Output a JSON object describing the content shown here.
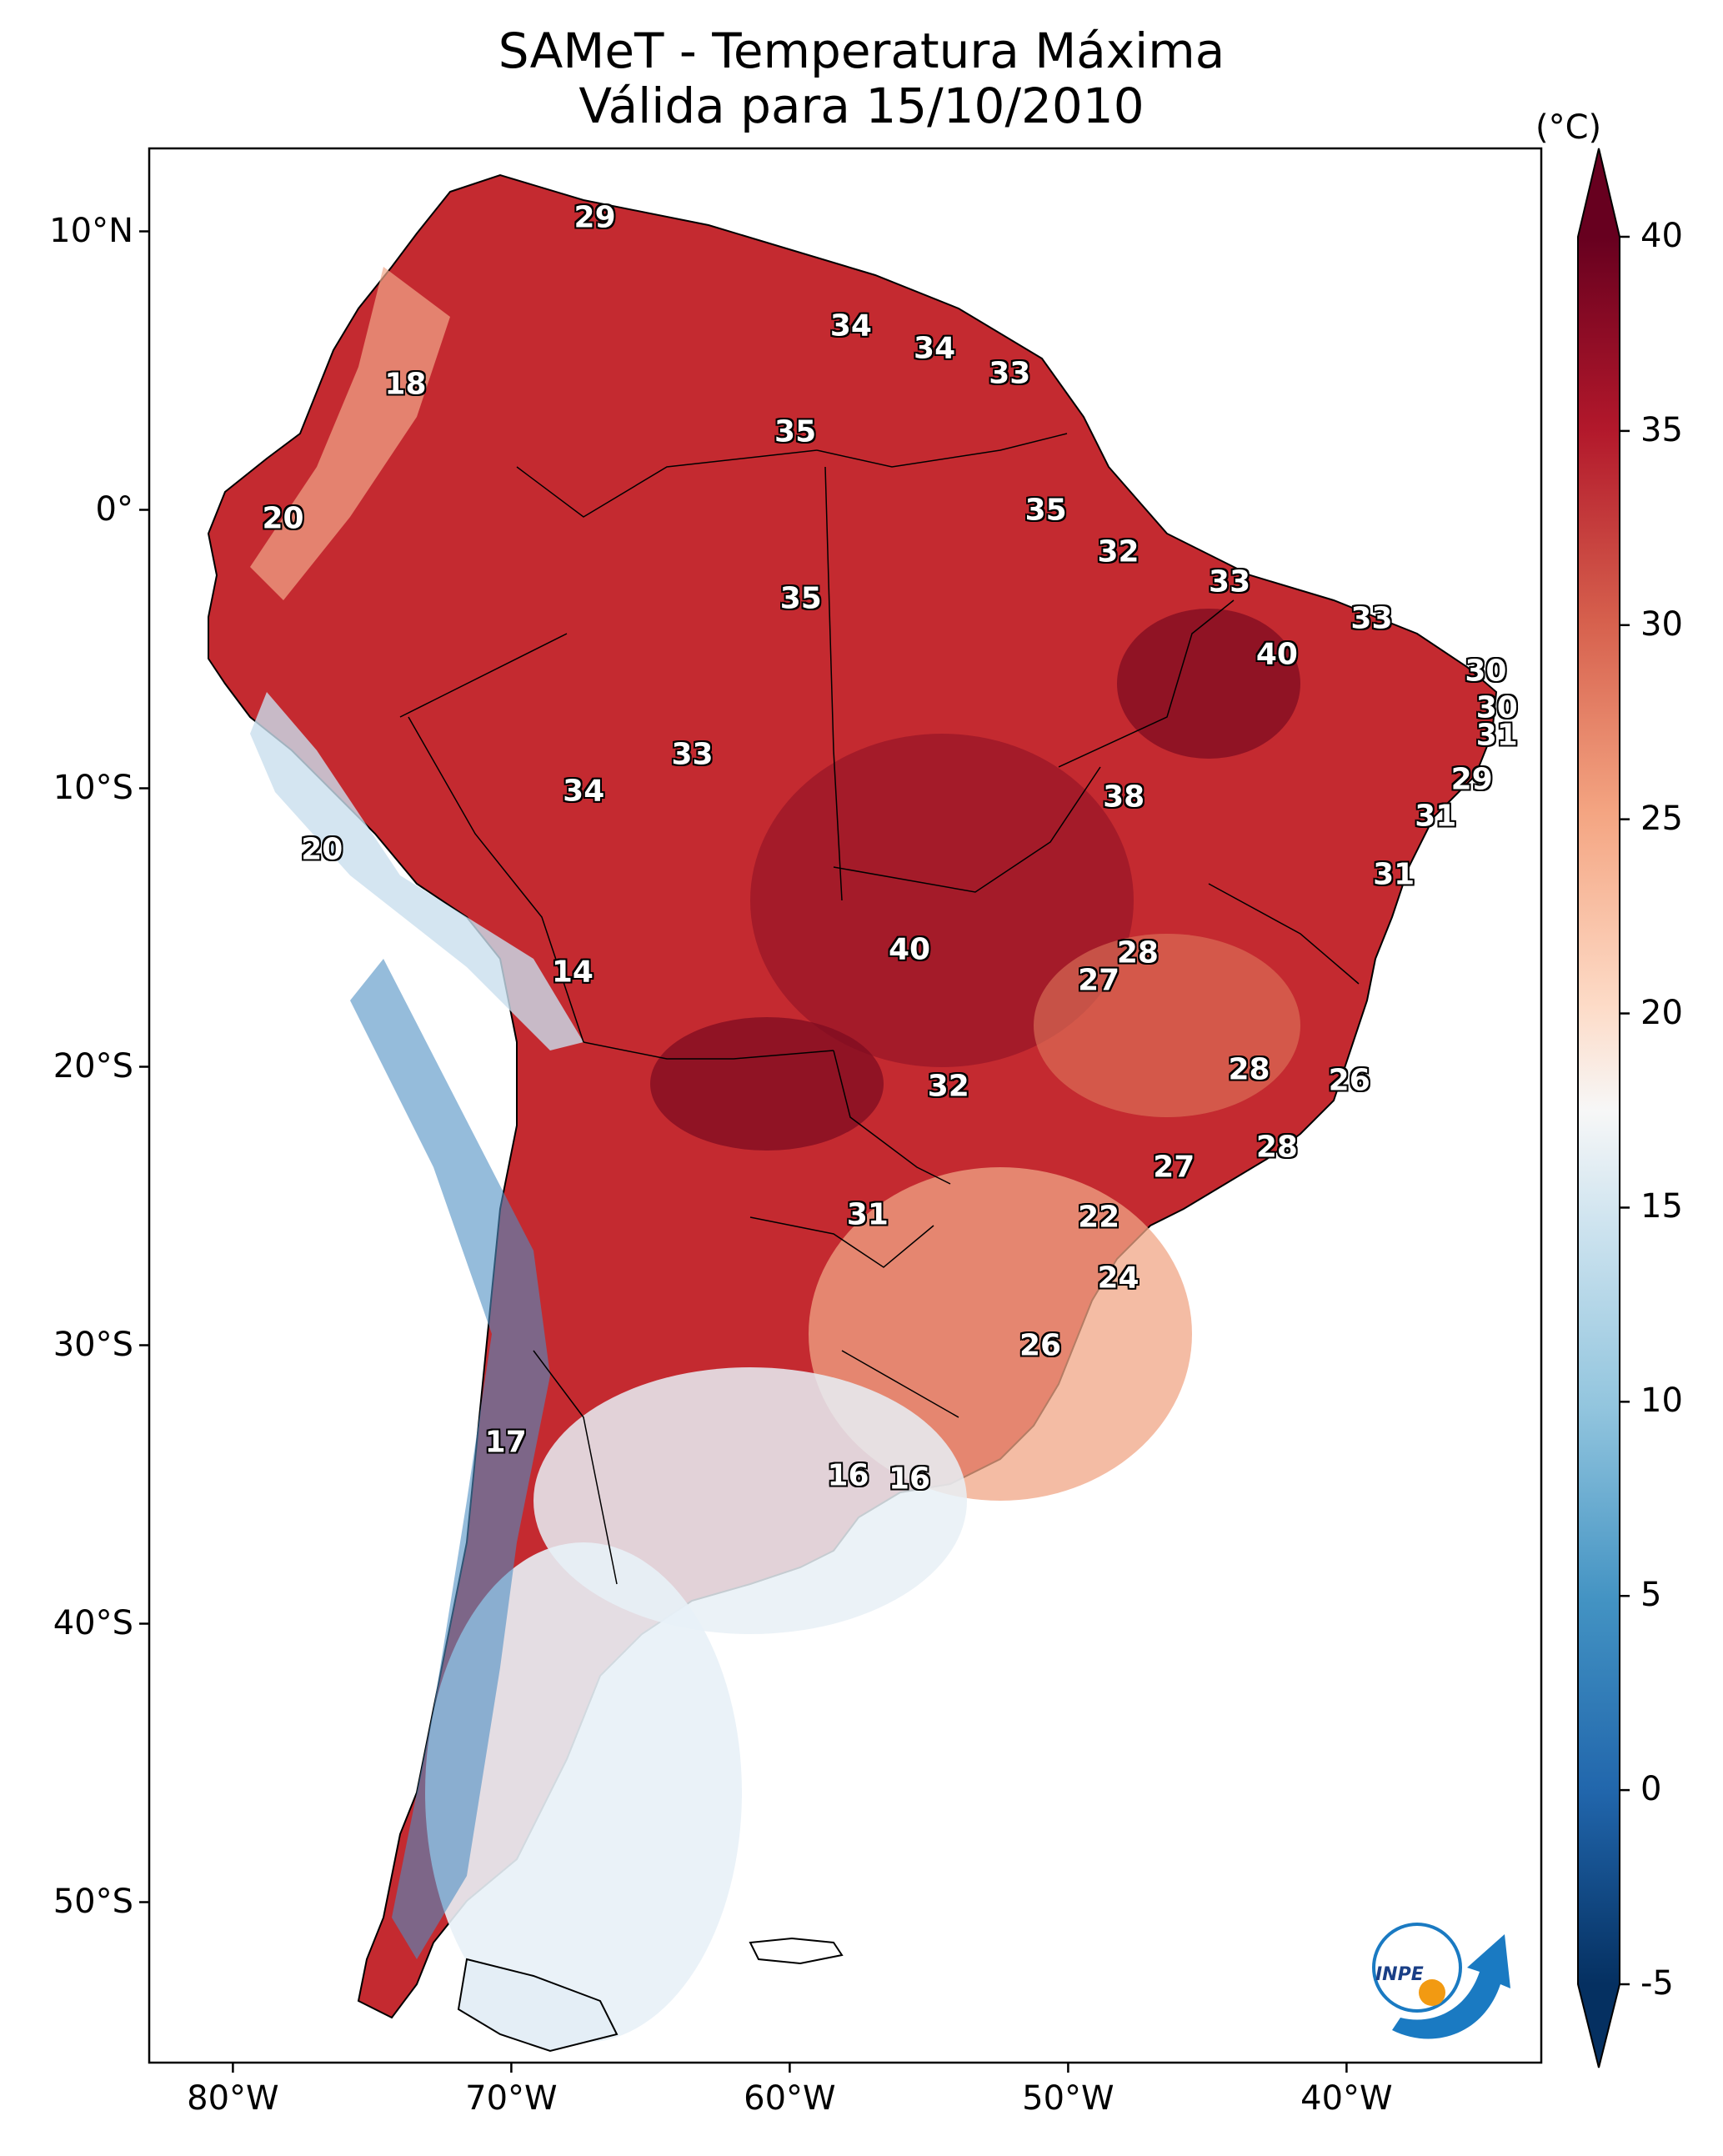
{
  "title": {
    "line1": "SAMeT - Temperatura Máxima",
    "line2": "Válida para 15/10/2010"
  },
  "lat_ticks": [
    "10°N",
    "0°",
    "10°S",
    "20°S",
    "30°S",
    "40°S",
    "50°S"
  ],
  "lon_ticks": [
    "80°W",
    "70°W",
    "60°W",
    "50°W",
    "40°W"
  ],
  "colorbar": {
    "unit": "(°C)",
    "min": -5,
    "max": 40,
    "ticks": [
      "40",
      "35",
      "30",
      "25",
      "20",
      "15",
      "10",
      "5",
      "0",
      "-5"
    ]
  },
  "logo_text": "INPE",
  "labels": [
    {
      "value": "29",
      "lon": -67.0,
      "lat": 10.5
    },
    {
      "value": "34",
      "lon": -57.8,
      "lat": 6.6
    },
    {
      "value": "34",
      "lon": -54.8,
      "lat": 5.8
    },
    {
      "value": "33",
      "lon": -52.1,
      "lat": 4.9
    },
    {
      "value": "18",
      "lon": -73.8,
      "lat": 4.5
    },
    {
      "value": "35",
      "lon": -59.8,
      "lat": 2.8
    },
    {
      "value": "35",
      "lon": -50.8,
      "lat": 0.0
    },
    {
      "value": "20",
      "lon": -78.2,
      "lat": -0.3
    },
    {
      "value": "32",
      "lon": -48.2,
      "lat": -1.5
    },
    {
      "value": "33",
      "lon": -44.2,
      "lat": -2.6
    },
    {
      "value": "35",
      "lon": -59.6,
      "lat": -3.2
    },
    {
      "value": "33",
      "lon": -39.1,
      "lat": -3.9
    },
    {
      "value": "40",
      "lon": -42.5,
      "lat": -5.2
    },
    {
      "value": "30",
      "lon": -35.0,
      "lat": -5.8
    },
    {
      "value": "30",
      "lon": -34.6,
      "lat": -7.1
    },
    {
      "value": "31",
      "lon": -34.6,
      "lat": -8.1
    },
    {
      "value": "33",
      "lon": -63.5,
      "lat": -8.8
    },
    {
      "value": "29",
      "lon": -35.5,
      "lat": -9.7
    },
    {
      "value": "38",
      "lon": -48.0,
      "lat": -10.3
    },
    {
      "value": "34",
      "lon": -67.4,
      "lat": -10.1
    },
    {
      "value": "31",
      "lon": -36.8,
      "lat": -11.0
    },
    {
      "value": "20",
      "lon": -76.8,
      "lat": -12.2
    },
    {
      "value": "31",
      "lon": -38.3,
      "lat": -13.1
    },
    {
      "value": "28",
      "lon": -47.5,
      "lat": -15.9
    },
    {
      "value": "40",
      "lon": -55.7,
      "lat": -15.8
    },
    {
      "value": "27",
      "lon": -48.9,
      "lat": -16.9
    },
    {
      "value": "14",
      "lon": -67.8,
      "lat": -16.6
    },
    {
      "value": "28",
      "lon": -43.5,
      "lat": -20.1
    },
    {
      "value": "26",
      "lon": -39.9,
      "lat": -20.5
    },
    {
      "value": "32",
      "lon": -54.3,
      "lat": -20.7
    },
    {
      "value": "28",
      "lon": -42.5,
      "lat": -22.9
    },
    {
      "value": "27",
      "lon": -46.2,
      "lat": -23.6
    },
    {
      "value": "31",
      "lon": -57.2,
      "lat": -25.3
    },
    {
      "value": "22",
      "lon": -48.9,
      "lat": -25.4
    },
    {
      "value": "24",
      "lon": -48.2,
      "lat": -27.6
    },
    {
      "value": "26",
      "lon": -51.0,
      "lat": -30.0
    },
    {
      "value": "17",
      "lon": -70.2,
      "lat": -33.5
    },
    {
      "value": "16",
      "lon": -57.9,
      "lat": -34.7
    },
    {
      "value": "16",
      "lon": -55.7,
      "lat": -34.8
    }
  ]
}
